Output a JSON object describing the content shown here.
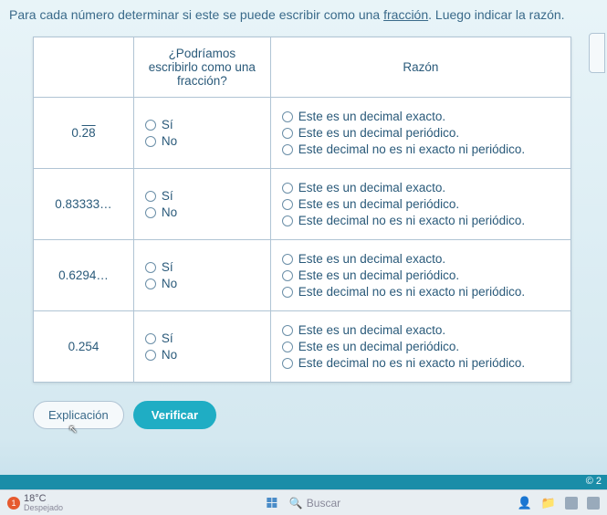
{
  "instruction_pre": "Para cada número determinar si este se puede escribir como una ",
  "instruction_link": "fracción",
  "instruction_post": ". Luego indicar la razón.",
  "headers": {
    "col1": "",
    "col2": "¿Podríamos escribirlo como una fracción?",
    "col3": "Razón"
  },
  "yes": "Sí",
  "no": "No",
  "reasons": {
    "exact": "Este es un decimal exacto.",
    "periodic": "Este es un decimal periódico.",
    "neither": "Este decimal no es ni exacto ni periódico."
  },
  "rows": [
    {
      "num_pre": "0.",
      "num_over": "28",
      "num_post": ""
    },
    {
      "num_pre": "0.83333…",
      "num_over": "",
      "num_post": ""
    },
    {
      "num_pre": "0.6294…",
      "num_over": "",
      "num_post": ""
    },
    {
      "num_pre": "0.254",
      "num_over": "",
      "num_post": ""
    }
  ],
  "buttons": {
    "explain": "Explicación",
    "verify": "Verificar"
  },
  "footer": "© 2",
  "taskbar": {
    "temp": "18°C",
    "weather": "Despejado",
    "badge": "1",
    "search": "Buscar"
  }
}
